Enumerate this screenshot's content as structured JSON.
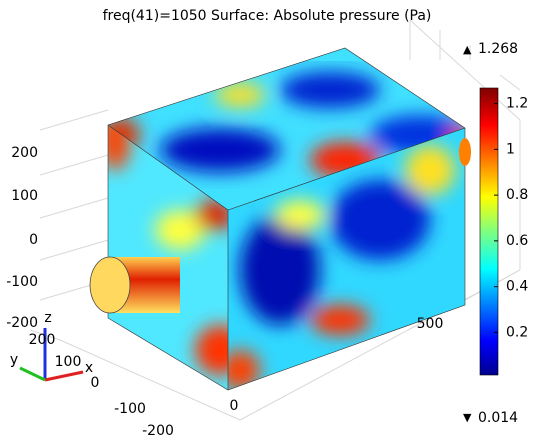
{
  "chart_data": {
    "type": "surface3d",
    "title": "freq(41)=1050  Surface: Absolute pressure (Pa)",
    "colorbar": {
      "max": 1.268,
      "min": 0.014,
      "ticks": [
        0.2,
        0.4,
        0.6,
        0.8,
        1,
        1.2
      ]
    },
    "zticks": [
      200,
      100,
      0,
      -100,
      -200
    ],
    "yticks": [
      200,
      100,
      0,
      -100,
      -200
    ],
    "xticks": [
      0,
      500
    ],
    "triad": [
      "x",
      "y",
      "z"
    ]
  }
}
